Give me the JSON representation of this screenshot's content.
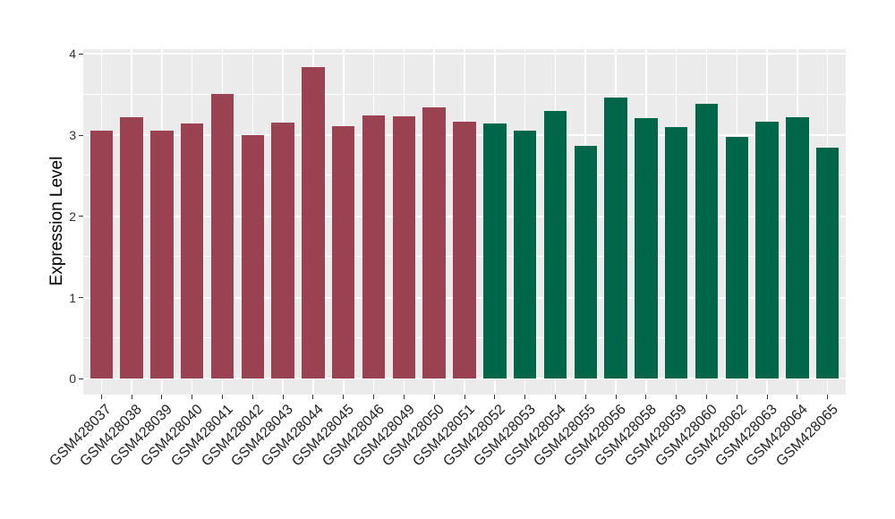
{
  "chart_data": {
    "type": "bar",
    "title": "",
    "xlabel": "",
    "ylabel": "Expression Level",
    "ylim": [
      -0.19,
      4.06
    ],
    "yticks": [
      0,
      1,
      2,
      3,
      4
    ],
    "yticks_minor": [
      0.5,
      1.5,
      2.5,
      3.5
    ],
    "grid": true,
    "legend_position": "none",
    "categories": [
      "GSM428037",
      "GSM428038",
      "GSM428039",
      "GSM428040",
      "GSM428041",
      "GSM428042",
      "GSM428043",
      "GSM428044",
      "GSM428045",
      "GSM428046",
      "GSM428049",
      "GSM428050",
      "GSM428051",
      "GSM428052",
      "GSM428053",
      "GSM428054",
      "GSM428055",
      "GSM428056",
      "GSM428058",
      "GSM428059",
      "GSM428060",
      "GSM428062",
      "GSM428063",
      "GSM428064",
      "GSM428065"
    ],
    "values": [
      3.06,
      3.22,
      3.06,
      3.14,
      3.51,
      3.0,
      3.15,
      3.84,
      3.11,
      3.24,
      3.23,
      3.34,
      3.17,
      3.14,
      3.06,
      3.3,
      2.87,
      3.46,
      3.21,
      3.1,
      3.39,
      2.98,
      3.17,
      3.22,
      2.85
    ],
    "bar_colors": [
      "#9B4252",
      "#9B4252",
      "#9B4252",
      "#9B4252",
      "#9B4252",
      "#9B4252",
      "#9B4252",
      "#9B4252",
      "#9B4252",
      "#9B4252",
      "#9B4252",
      "#9B4252",
      "#9B4252",
      "#006649",
      "#006649",
      "#006649",
      "#006649",
      "#006649",
      "#006649",
      "#006649",
      "#006649",
      "#006649",
      "#006649",
      "#006649",
      "#006649"
    ],
    "colors": {
      "group_red": "#9B4252",
      "group_green": "#006649",
      "panel_background": "#EBEBEB",
      "gridline": "#FFFFFF",
      "axis_text": "#303030",
      "tick_mark": "#333333",
      "figure_background": "#FFFFFF"
    }
  }
}
